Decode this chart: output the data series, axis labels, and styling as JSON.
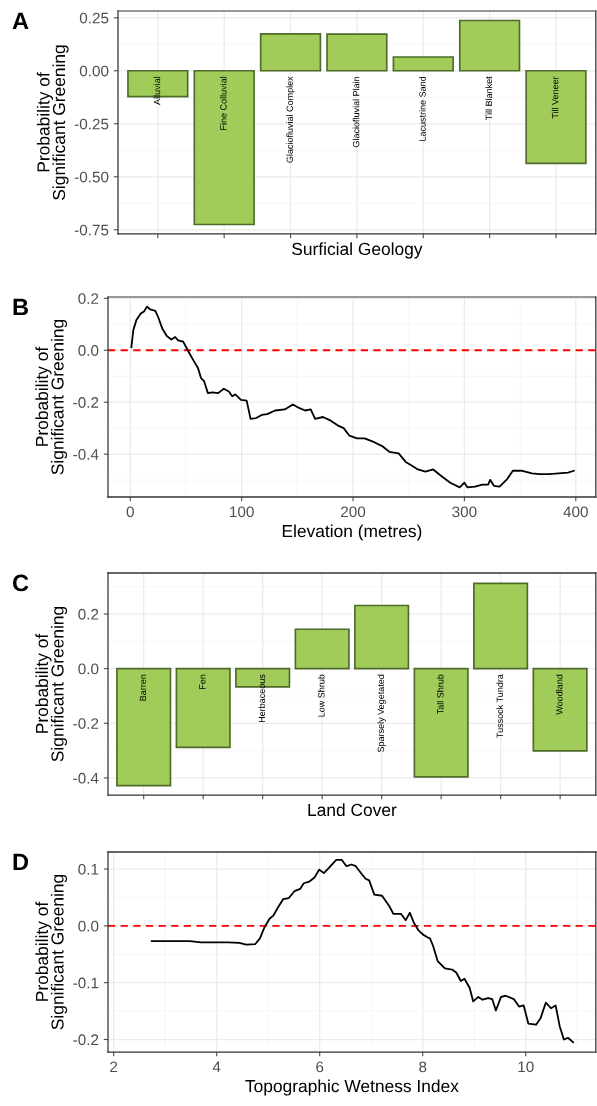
{
  "chart_data": [
    {
      "type": "bar",
      "title": "A",
      "xlabel": "Surficial Geology",
      "ylabel": "Probability of\nSignificant Greening",
      "categories": [
        "Alluvial",
        "Fine Colluvial",
        "Glaciofluvial Complex",
        "Glaciofluvial Plain",
        "Lacustrine Sand",
        "Till Blanket",
        "Till Veneer"
      ],
      "values": [
        -0.122,
        -0.725,
        0.174,
        0.173,
        0.065,
        0.237,
        -0.437
      ],
      "color": "#a1cc5a",
      "ylim": [
        -0.77,
        0.282
      ],
      "yticks": [
        {
          "value": 0.25,
          "label": "0.25"
        },
        {
          "value": 0.0,
          "label": "0.00"
        },
        {
          "value": -0.25,
          "label": "-0.25"
        },
        {
          "value": -0.5,
          "label": "-0.50"
        },
        {
          "value": -0.75,
          "label": "-0.75"
        }
      ],
      "grid": true,
      "tick_labels": "y"
    },
    {
      "type": "line",
      "title": "B",
      "xlabel": "Elevation (metres)",
      "ylabel": "Probability of\nSignificant Greening",
      "x": [
        1,
        2.7,
        5.5,
        9.6,
        12.3,
        15,
        18,
        22.5,
        25,
        28.7,
        32.8,
        36.9,
        40.3,
        43,
        47.5,
        51.6,
        56.7,
        60.8,
        63.5,
        66.3,
        69.7,
        73.8,
        78.9,
        84,
        88.5,
        91.5,
        94.3,
        99.4,
        104.5,
        108,
        113,
        118,
        123,
        130,
        138.7,
        146,
        152,
        157,
        162,
        166,
        173,
        180,
        186.5,
        191.6,
        196.8,
        203.6,
        210.4,
        219,
        225.8,
        232.6,
        241,
        247.3,
        253,
        258.2,
        265,
        272,
        280.4,
        287.3,
        295.8,
        300,
        302.8,
        309.5,
        316.3,
        321.4,
        323.1,
        326.5,
        331.6,
        338.4,
        343.5,
        352,
        360.6,
        367.5,
        376,
        384.6,
        393,
        398.3
      ],
      "series": [
        {
          "color": "#000000",
          "values": [
            0.012,
            0.077,
            0.116,
            0.142,
            0.149,
            0.168,
            0.157,
            0.152,
            0.128,
            0.084,
            0.055,
            0.041,
            0.051,
            0.038,
            0.033,
            0.0,
            -0.039,
            -0.068,
            -0.107,
            -0.119,
            -0.165,
            -0.162,
            -0.165,
            -0.148,
            -0.159,
            -0.177,
            -0.17,
            -0.191,
            -0.194,
            -0.264,
            -0.261,
            -0.249,
            -0.246,
            -0.232,
            -0.228,
            -0.209,
            -0.223,
            -0.232,
            -0.228,
            -0.264,
            -0.257,
            -0.271,
            -0.29,
            -0.3,
            -0.329,
            -0.339,
            -0.339,
            -0.354,
            -0.368,
            -0.391,
            -0.397,
            -0.43,
            -0.445,
            -0.459,
            -0.467,
            -0.459,
            -0.488,
            -0.51,
            -0.528,
            -0.51,
            -0.528,
            -0.525,
            -0.517,
            -0.517,
            -0.499,
            -0.522,
            -0.525,
            -0.496,
            -0.464,
            -0.464,
            -0.474,
            -0.477,
            -0.477,
            -0.474,
            -0.471,
            -0.464
          ]
        }
      ],
      "xlim": [
        -20,
        418
      ],
      "xticks": [
        0,
        100,
        200,
        300,
        400
      ],
      "ylim": [
        -0.565,
        0.205
      ],
      "yticks": [
        {
          "value": 0.2,
          "label": "0.2"
        },
        {
          "value": 0.0,
          "label": "0.0"
        },
        {
          "value": -0.2,
          "label": "-0.2"
        },
        {
          "value": -0.4,
          "label": "-0.4"
        }
      ],
      "ref_lines": [
        {
          "axis": "y",
          "value": 0,
          "color": "#ff0000",
          "line_style": "dashed"
        }
      ],
      "grid": true
    },
    {
      "type": "bar",
      "title": "C",
      "xlabel": "Land Cover",
      "ylabel": "Probability of\nSignificant Greening",
      "categories": [
        "Barren",
        "Fen",
        "Herbaceous",
        "Low Shrub",
        "Sparsely Vegetated",
        "Tall Shrub",
        "Tussock Tundra",
        "Woodland"
      ],
      "values": [
        -0.428,
        -0.288,
        -0.067,
        0.144,
        0.231,
        -0.396,
        0.312,
        -0.301
      ],
      "color": "#a1cc5a",
      "ylim": [
        -0.4625,
        0.35
      ],
      "yticks": [
        {
          "value": 0.2,
          "label": "0.2"
        },
        {
          "value": 0.0,
          "label": "0.0"
        },
        {
          "value": -0.2,
          "label": "-0.2"
        },
        {
          "value": -0.4,
          "label": "-0.4"
        }
      ],
      "grid": true,
      "tick_labels": "y"
    },
    {
      "type": "line",
      "title": "D",
      "xlabel": "Topographic Wetness Index",
      "ylabel": "Probability of\nSignificant Greening",
      "x": [
        2.74,
        3.48,
        3.7,
        4.22,
        4.44,
        4.57,
        4.75,
        4.84,
        4.93,
        5.03,
        5.1,
        5.18,
        5.29,
        5.4,
        5.51,
        5.62,
        5.69,
        5.8,
        5.9,
        5.99,
        6.08,
        6.17,
        6.32,
        6.43,
        6.52,
        6.62,
        6.7,
        6.8,
        6.89,
        6.96,
        7.06,
        7.21,
        7.35,
        7.43,
        7.58,
        7.67,
        7.75,
        7.83,
        7.91,
        8.0,
        8.09,
        8.14,
        8.2,
        8.29,
        8.43,
        8.57,
        8.65,
        8.74,
        8.81,
        8.91,
        8.98,
        9.08,
        9.16,
        9.27,
        9.35,
        9.42,
        9.52,
        9.61,
        9.77,
        9.87,
        9.96,
        10.05,
        10.2,
        10.29,
        10.39,
        10.49,
        10.58,
        10.66,
        10.74,
        10.82,
        10.92
      ],
      "series": [
        {
          "color": "#000000",
          "values": [
            -0.027,
            -0.027,
            -0.029,
            -0.029,
            -0.03,
            -0.033,
            -0.032,
            -0.022,
            -0.002,
            0.013,
            0.018,
            0.031,
            0.047,
            0.049,
            0.061,
            0.065,
            0.075,
            0.078,
            0.085,
            0.099,
            0.093,
            0.101,
            0.116,
            0.116,
            0.105,
            0.108,
            0.105,
            0.093,
            0.083,
            0.08,
            0.055,
            0.053,
            0.035,
            0.021,
            0.021,
            0.01,
            0.023,
            0.005,
            -0.007,
            -0.015,
            -0.02,
            -0.022,
            -0.035,
            -0.062,
            -0.075,
            -0.077,
            -0.082,
            -0.097,
            -0.093,
            -0.109,
            -0.133,
            -0.125,
            -0.13,
            -0.127,
            -0.129,
            -0.149,
            -0.125,
            -0.123,
            -0.129,
            -0.142,
            -0.14,
            -0.172,
            -0.174,
            -0.162,
            -0.135,
            -0.145,
            -0.14,
            -0.177,
            -0.2,
            -0.197,
            -0.205
          ]
        }
      ],
      "xlim": [
        1.89,
        11.36
      ],
      "xticks": [
        2,
        4,
        6,
        8,
        10
      ],
      "ylim": [
        -0.222,
        0.13
      ],
      "yticks": [
        {
          "value": 0.1,
          "label": "0.1"
        },
        {
          "value": 0.0,
          "label": "0.0"
        },
        {
          "value": -0.1,
          "label": "-0.1"
        },
        {
          "value": -0.2,
          "label": "-0.2"
        }
      ],
      "ref_lines": [
        {
          "axis": "y",
          "value": 0,
          "color": "#ff0000",
          "line_style": "dashed"
        }
      ],
      "grid": true
    }
  ]
}
